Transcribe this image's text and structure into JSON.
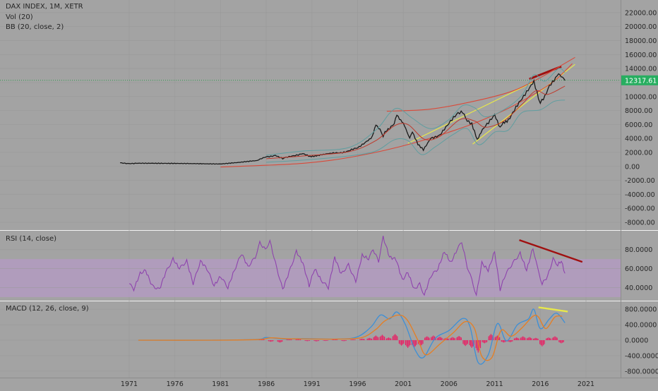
{
  "chart_data": [
    {
      "type": "line",
      "panel": "price",
      "title": "DAX INDEX, 1M, XETR",
      "indicators": [
        "Vol (20)",
        "BB (20, close, 2)"
      ],
      "y_scale": "linear",
      "ylim": [
        -8500,
        23000
      ],
      "y_ticks": [
        "22000.00",
        "20000.00",
        "18000.00",
        "16000.00",
        "14000.00",
        "12000.00",
        "10000.00",
        "8000.00",
        "6000.00",
        "4000.00",
        "2000.00",
        "0.00",
        "-2000.00",
        "-4000.00",
        "-6000.00",
        "-8000.00"
      ],
      "y_tick_values": [
        22000,
        20000,
        18000,
        16000,
        14000,
        12000,
        10000,
        8000,
        6000,
        4000,
        2000,
        0,
        -2000,
        -4000,
        -6000,
        -8000
      ],
      "last_price_label": "12317.61",
      "last_price": 12317.61,
      "series": [
        {
          "name": "DAX INDEX",
          "color": "#1a1a1a",
          "x": [
            1970.0,
            1971.0,
            1972.0,
            1975.0,
            1978.0,
            1981.0,
            1983.0,
            1985.0,
            1986.0,
            1987.0,
            1987.8,
            1988.0,
            1989.0,
            1990.0,
            1990.8,
            1991.5,
            1993.0,
            1994.0,
            1995.0,
            1996.0,
            1997.0,
            1997.6,
            1998.0,
            1998.6,
            1998.8,
            1999.0,
            2000.0,
            2000.3,
            2001.0,
            2001.7,
            2002.0,
            2002.6,
            2003.2,
            2004.0,
            2005.0,
            2006.0,
            2007.0,
            2007.5,
            2008.0,
            2008.5,
            2009.1,
            2009.5,
            2010.0,
            2011.0,
            2011.6,
            2011.8,
            2012.5,
            2013.0,
            2014.0,
            2015.0,
            2015.3,
            2015.8,
            2016.0,
            2016.5,
            2017.0,
            2017.5,
            2018.0,
            2018.7
          ],
          "values": [
            500,
            450,
            420,
            400,
            400,
            380,
            550,
            800,
            1400,
            1600,
            1100,
            1200,
            1600,
            1800,
            1350,
            1600,
            1800,
            2000,
            2200,
            2600,
            3700,
            4300,
            5800,
            5000,
            4000,
            5000,
            6200,
            7600,
            6000,
            4200,
            5100,
            3200,
            2300,
            4000,
            4600,
            6000,
            7800,
            8000,
            6500,
            5900,
            3800,
            5000,
            6000,
            7200,
            5500,
            5900,
            6800,
            7800,
            9500,
            11800,
            12300,
            10000,
            9000,
            9800,
            11500,
            12500,
            13500,
            12300
          ]
        },
        {
          "name": "BB upper",
          "color": "#5f9ea0",
          "x": [
            1986,
            1990,
            1995,
            1998,
            1999.5,
            2000.5,
            2002,
            2004,
            2006,
            2007.5,
            2008.8,
            2010,
            2012,
            2014,
            2015.3,
            2016.5,
            2018,
            2018.7
          ],
          "values": [
            1600,
            2200,
            2700,
            5200,
            7600,
            8300,
            6900,
            5400,
            6700,
            8700,
            8400,
            7100,
            8100,
            10200,
            13100,
            12200,
            14000,
            13400
          ]
        },
        {
          "name": "BB lower",
          "color": "#5f9ea0",
          "x": [
            1986,
            1990,
            1995,
            1998,
            2000,
            2001.5,
            2003,
            2004.5,
            2006.5,
            2008,
            2009.3,
            2011,
            2012.5,
            2014,
            2016,
            2017.5,
            2018.7
          ],
          "values": [
            600,
            900,
            1500,
            2200,
            3800,
            3700,
            1700,
            2800,
            4600,
            5400,
            3100,
            4900,
            5200,
            7700,
            8100,
            9300,
            9500
          ]
        },
        {
          "name": "BB basis",
          "color": "#c0392b",
          "x": [
            1986,
            1990,
            1995,
            1998,
            2000,
            2001.5,
            2003.3,
            2005,
            2007.2,
            2008.8,
            2010,
            2012,
            2014,
            2015.5,
            2016.8,
            2018.7
          ],
          "values": [
            1100,
            1500,
            2100,
            3700,
            5800,
            6000,
            3900,
            4300,
            6700,
            6500,
            5600,
            6500,
            8900,
            10800,
            10300,
            11500
          ]
        }
      ],
      "annotations": [
        {
          "type": "trendline",
          "color": "#a01010",
          "x": [
            2014.8,
            2018.3
          ],
          "values": [
            12500,
            14300
          ]
        },
        {
          "type": "trendline",
          "color": "#e8e84a",
          "x": [
            2001.5,
            2015.3
          ],
          "values": [
            3300,
            12100
          ]
        },
        {
          "type": "trendline",
          "color": "#e8e84a",
          "x": [
            2008.6,
            2019.8
          ],
          "values": [
            3200,
            14600
          ]
        },
        {
          "type": "curve",
          "color": "#d94a3a",
          "x": [
            1981,
            1990,
            1996,
            2002,
            2008,
            2012,
            2015,
            2017.5,
            2019.5
          ],
          "values": [
            -80,
            450,
            1500,
            3300,
            5800,
            8000,
            10100,
            12200,
            14700
          ]
        },
        {
          "type": "curve",
          "color": "#d94a3a",
          "x": [
            1999.2,
            2004,
            2009,
            2013,
            2016,
            2018.5,
            2019.8
          ],
          "values": [
            7900,
            8200,
            9400,
            10800,
            12700,
            14600,
            15600
          ]
        },
        {
          "type": "hline",
          "color": "#2e9e4e",
          "value": 12317.61
        }
      ]
    },
    {
      "type": "line",
      "panel": "rsi",
      "title": "RSI (14, close)",
      "ylim": [
        27,
        96
      ],
      "band": [
        30,
        70
      ],
      "y_ticks": [
        "80.0000",
        "60.0000",
        "40.0000"
      ],
      "y_tick_values": [
        80,
        60,
        40
      ],
      "series": [
        {
          "name": "RSI",
          "color": "#8e44ad",
          "x": [
            1971.0,
            1971.5,
            1972.2,
            1972.8,
            1973.5,
            1974.3,
            1975.0,
            1975.8,
            1976.5,
            1977.3,
            1978.0,
            1978.8,
            1979.5,
            1980.3,
            1981.0,
            1981.8,
            1982.5,
            1983.3,
            1984.0,
            1984.8,
            1985.3,
            1985.9,
            1986.4,
            1987.0,
            1987.8,
            1988.5,
            1989.3,
            1990.0,
            1990.7,
            1991.3,
            1992.0,
            1992.8,
            1993.5,
            1994.2,
            1995.0,
            1995.8,
            1996.5,
            1997.2,
            1997.7,
            1998.3,
            1998.8,
            1999.5,
            2000.2,
            2000.9,
            2001.5,
            2002.2,
            2002.8,
            2003.3,
            2004.0,
            2004.8,
            2005.5,
            2006.2,
            2006.9,
            2007.4,
            2008.0,
            2008.5,
            2009.0,
            2009.6,
            2010.3,
            2011.0,
            2011.6,
            2012.2,
            2013.0,
            2013.8,
            2014.5,
            2015.2,
            2015.7,
            2016.2,
            2016.8,
            2017.4,
            2017.9,
            2018.3,
            2018.7
          ],
          "values": [
            44,
            38,
            55,
            58,
            42,
            38,
            56,
            70,
            60,
            68,
            44,
            68,
            60,
            42,
            52,
            40,
            58,
            76,
            62,
            72,
            87,
            80,
            89,
            66,
            38,
            56,
            78,
            66,
            42,
            60,
            48,
            40,
            72,
            54,
            64,
            46,
            74,
            70,
            80,
            68,
            93,
            72,
            70,
            48,
            56,
            38,
            44,
            32,
            52,
            60,
            78,
            66,
            80,
            88,
            62,
            48,
            32,
            66,
            58,
            78,
            38,
            54,
            66,
            76,
            58,
            82,
            60,
            44,
            52,
            70,
            64,
            68,
            55
          ]
        }
      ],
      "annotations": [
        {
          "type": "trendline",
          "color": "#a01010",
          "x": [
            2013.7,
            2020.6
          ],
          "values": [
            90,
            67
          ]
        }
      ]
    },
    {
      "type": "bar",
      "panel": "macd",
      "title": "MACD (12, 26, close, 9)",
      "ylim": [
        -950,
        950
      ],
      "y_ticks": [
        "800.0000",
        "400.0000",
        "0.0000",
        "-400.0000",
        "-800.0000"
      ],
      "y_tick_values": [
        800,
        400,
        0,
        -400,
        -800
      ],
      "series": [
        {
          "name": "MACD",
          "color": "#3d8fd6",
          "x": [
            1972,
            1980,
            1985,
            1986,
            1988,
            1990,
            1994,
            1996,
            1997.5,
            1998.5,
            1999.5,
            2000.3,
            2001.2,
            2002.3,
            2003.2,
            2004.5,
            2006,
            2007.5,
            2008.3,
            2009.2,
            2010.3,
            2011.3,
            2012.3,
            2013.5,
            2014.7,
            2015.3,
            2016,
            2017,
            2017.8,
            2018.7
          ],
          "values": [
            0,
            0,
            20,
            70,
            30,
            40,
            30,
            90,
            350,
            650,
            550,
            730,
            420,
            -250,
            -450,
            50,
            250,
            560,
            350,
            -580,
            -380,
            430,
            -20,
            400,
            550,
            800,
            300,
            550,
            700,
            450
          ]
        },
        {
          "name": "Signal",
          "color": "#e67e22",
          "x": [
            1972,
            1980,
            1985,
            1986.5,
            1988,
            1990,
            1994,
            1996.5,
            1998,
            1999,
            2000.5,
            2001.5,
            2002.7,
            2003.5,
            2005,
            2006.5,
            2007.8,
            2008.8,
            2009.6,
            2010.7,
            2011.7,
            2012.8,
            2014,
            2015.2,
            2015.8,
            2016.6,
            2017.6,
            2018.4
          ],
          "values": [
            0,
            0,
            15,
            60,
            40,
            35,
            30,
            70,
            280,
            500,
            650,
            500,
            -50,
            -380,
            -100,
            200,
            480,
            300,
            -420,
            -450,
            250,
            100,
            320,
            620,
            600,
            300,
            600,
            620
          ]
        }
      ],
      "histogram": {
        "color": "#e91e63",
        "x": [
          1984.5,
          1985.5,
          1986.5,
          1987.5,
          1988.5,
          1989.5,
          1990.5,
          1991.5,
          1992.5,
          1993.5,
          1994.5,
          1995.5,
          1996.5,
          1997.3,
          1998.0,
          1998.7,
          1999.4,
          2000.1,
          2000.8,
          2001.5,
          2002.2,
          2002.9,
          2003.6,
          2004.3,
          2005.0,
          2005.7,
          2006.4,
          2007.1,
          2007.8,
          2008.5,
          2009.2,
          2009.9,
          2010.6,
          2011.3,
          2012.0,
          2012.7,
          2013.4,
          2014.1,
          2014.8,
          2015.5,
          2016.2,
          2016.9,
          2017.6,
          2018.3
        ],
        "values": [
          20,
          40,
          -40,
          -60,
          30,
          30,
          -25,
          -30,
          -20,
          30,
          -25,
          20,
          40,
          60,
          120,
          140,
          70,
          160,
          -140,
          -200,
          -190,
          -150,
          100,
          120,
          90,
          60,
          80,
          110,
          -150,
          -200,
          -320,
          -80,
          160,
          120,
          -60,
          -50,
          70,
          100,
          80,
          60,
          -160,
          70,
          100,
          -80
        ]
      }
    }
  ],
  "x_axis": {
    "ticks": [
      "1971",
      "1976",
      "1981",
      "1986",
      "1991",
      "1996",
      "2001",
      "2006",
      "2011",
      "2016",
      "2021"
    ],
    "tick_values": [
      1971,
      1976,
      1981,
      1986,
      1991,
      1996,
      2001,
      2006,
      2011,
      2016,
      2021
    ]
  },
  "colors": {
    "background": "#a3a3a3",
    "rsi_band": "#b49ac4",
    "gridline": "#999999",
    "text": "#262626",
    "last_price_badge": "#27ae60"
  }
}
